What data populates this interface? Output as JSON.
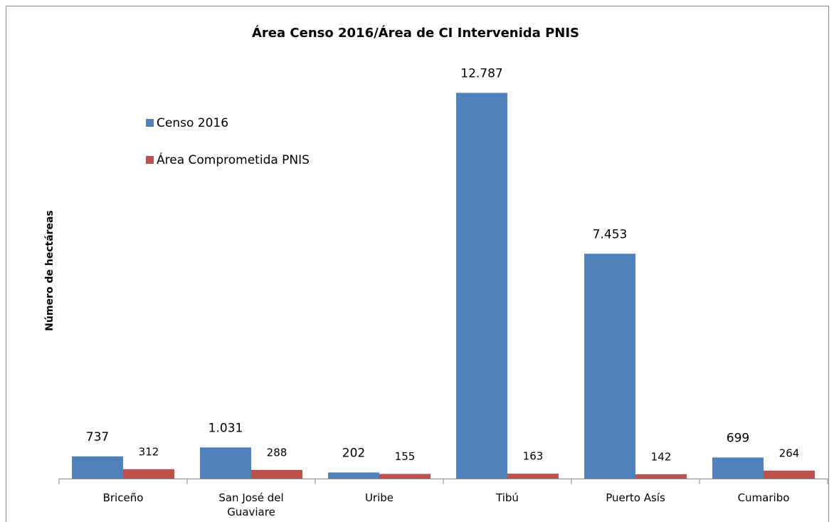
{
  "chart_data": {
    "type": "bar",
    "title": "Área Censo 2016/Área de CI Intervenida PNIS",
    "y_label": "Número de hectáreas",
    "categories": [
      "Briceño",
      "San José del Guaviare",
      "Uribe",
      "Tibú",
      "Puerto Asís",
      "Cumaribo"
    ],
    "series": [
      {
        "name": "Censo 2016",
        "color": "#4f81bd",
        "values": [
          737,
          1031,
          202,
          12787,
          7453,
          699
        ],
        "value_labels": [
          "737",
          "1.031",
          "202",
          "12.787",
          "7.453",
          "699"
        ]
      },
      {
        "name": "Área Comprometida PNIS",
        "color": "#c0504d",
        "values": [
          312,
          288,
          155,
          163,
          142,
          264
        ]
      }
    ],
    "ylim": [
      0,
      14000
    ],
    "legend": "top-left"
  }
}
